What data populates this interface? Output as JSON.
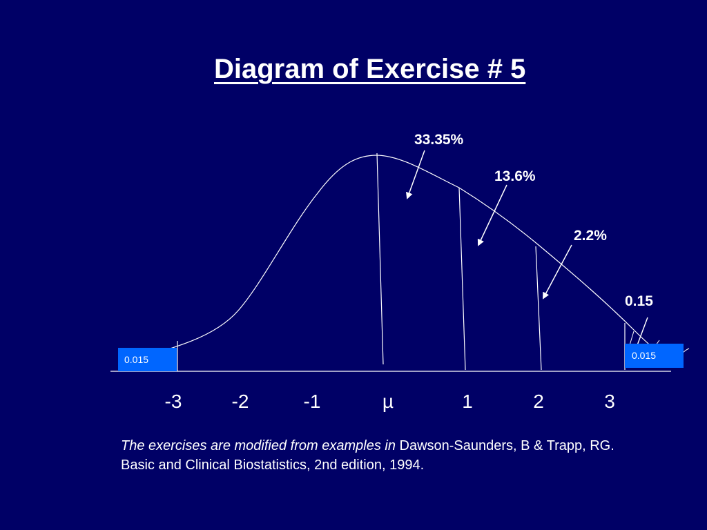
{
  "title": "Diagram of Exercise # 5",
  "colors": {
    "background": "#000066",
    "foreground": "#ffffff",
    "box_fill": "#0066ff"
  },
  "labels": {
    "region_0_1": "33.35%",
    "region_1_2": "13.6%",
    "region_2_3": "2.2%",
    "tail_beyond_3": "0.15",
    "left_box": "0.015",
    "right_box": "0.015"
  },
  "axis": {
    "ticks": [
      "-3",
      "-2",
      "-1",
      "µ",
      "1",
      "2",
      "3"
    ]
  },
  "footnote": {
    "italic": "The exercises are modified from examples in",
    "normal": "Dawson-Saunders, B & Trapp, RG. Basic and Clinical Biostatistics, 2nd edition, 1994."
  }
}
